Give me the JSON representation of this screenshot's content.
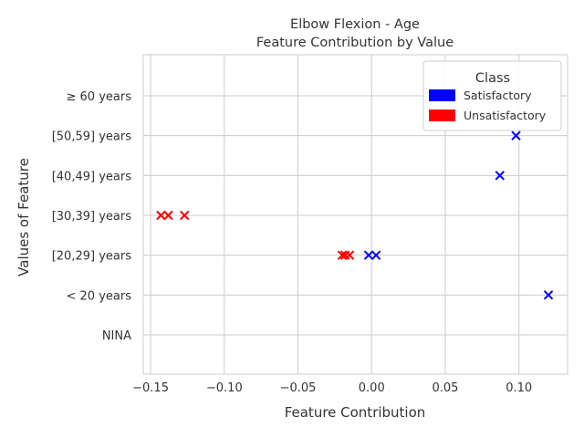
{
  "chart_data": {
    "type": "scatter",
    "title": "Elbow Flexion - Age",
    "subtitle": "Feature Contribution by Value",
    "xlabel": "Feature Contribution",
    "ylabel": "Values of Feature",
    "xlim": [
      -0.155,
      0.133
    ],
    "x_ticks": [
      -0.15,
      -0.1,
      -0.05,
      0.0,
      0.05,
      0.1
    ],
    "x_tick_labels": [
      "−0.15",
      "−0.10",
      "−0.05",
      "0.00",
      "0.05",
      "0.10"
    ],
    "categories": [
      "NINA",
      "< 20 years",
      "[20,29] years",
      "[30,39] years",
      "[40,49] years",
      "[50,59] years",
      "≥ 60 years"
    ],
    "grid": true,
    "marker": "x",
    "legend": {
      "title": "Class",
      "position": "top-right",
      "entries": [
        {
          "label": "Satisfactory",
          "color": "#0000ff"
        },
        {
          "label": "Unsatisfactory",
          "color": "#ff0000"
        }
      ]
    },
    "series": [
      {
        "name": "Satisfactory",
        "color": "#0000ff",
        "points": [
          {
            "x": 0.12,
            "y": "< 20 years"
          },
          {
            "x": -0.002,
            "y": "[20,29] years"
          },
          {
            "x": 0.003,
            "y": "[20,29] years"
          },
          {
            "x": 0.087,
            "y": "[40,49] years"
          },
          {
            "x": 0.098,
            "y": "[50,59] years"
          }
        ]
      },
      {
        "name": "Unsatisfactory",
        "color": "#ff0000",
        "points": [
          {
            "x": -0.02,
            "y": "[20,29] years"
          },
          {
            "x": -0.018,
            "y": "[20,29] years"
          },
          {
            "x": -0.015,
            "y": "[20,29] years"
          },
          {
            "x": -0.143,
            "y": "[30,39] years"
          },
          {
            "x": -0.138,
            "y": "[30,39] years"
          },
          {
            "x": -0.127,
            "y": "[30,39] years"
          }
        ]
      }
    ]
  }
}
